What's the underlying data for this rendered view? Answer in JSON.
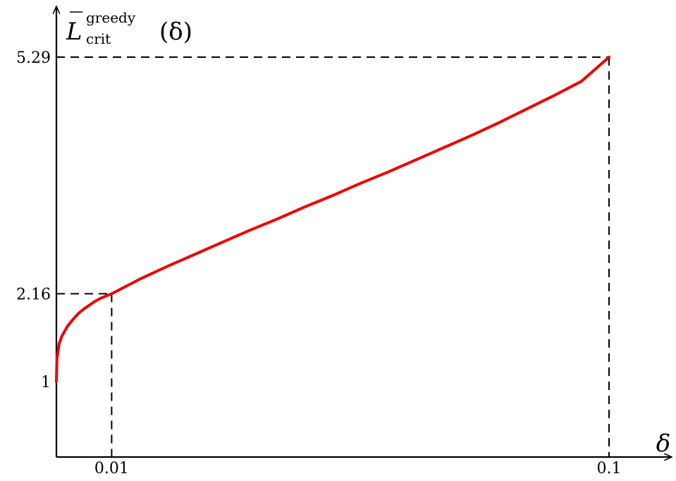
{
  "chart_data": {
    "type": "line",
    "title": "",
    "xlabel": "δ",
    "ylabel": {
      "base": "L",
      "superscript": "greedy",
      "subscript": "crit",
      "argument": "(δ)"
    },
    "xlim": [
      0,
      0.1
    ],
    "ylim": [
      0,
      5.29
    ],
    "x_ticks": [
      {
        "value": 0.01,
        "label": "0.01"
      },
      {
        "value": 0.1,
        "label": "0.1"
      }
    ],
    "y_ticks": [
      {
        "value": 1,
        "label": "1"
      },
      {
        "value": 2.16,
        "label": "2.16"
      },
      {
        "value": 5.29,
        "label": "5.29"
      }
    ],
    "reference_lines": [
      {
        "x": 0.01,
        "y": 2.16
      },
      {
        "x": 0.1,
        "y": 5.29
      }
    ],
    "grid": false,
    "series": [
      {
        "color": "#ee0000",
        "points": [
          [
            0.0,
            1.0
          ],
          [
            0.0001,
            1.3
          ],
          [
            0.0005,
            1.5
          ],
          [
            0.001,
            1.6
          ],
          [
            0.002,
            1.73
          ],
          [
            0.003,
            1.82
          ],
          [
            0.004,
            1.9
          ],
          [
            0.005,
            1.96
          ],
          [
            0.006,
            2.01
          ],
          [
            0.007,
            2.06
          ],
          [
            0.008,
            2.1
          ],
          [
            0.009,
            2.13
          ],
          [
            0.01,
            2.16
          ],
          [
            0.015,
            2.35
          ],
          [
            0.02,
            2.52
          ],
          [
            0.025,
            2.68
          ],
          [
            0.03,
            2.84
          ],
          [
            0.035,
            3.0
          ],
          [
            0.04,
            3.15
          ],
          [
            0.045,
            3.31
          ],
          [
            0.05,
            3.46
          ],
          [
            0.055,
            3.62
          ],
          [
            0.06,
            3.77
          ],
          [
            0.065,
            3.93
          ],
          [
            0.07,
            4.09
          ],
          [
            0.075,
            4.25
          ],
          [
            0.08,
            4.42
          ],
          [
            0.085,
            4.6
          ],
          [
            0.09,
            4.78
          ],
          [
            0.095,
            4.97
          ],
          [
            0.1,
            5.29
          ]
        ]
      }
    ]
  }
}
